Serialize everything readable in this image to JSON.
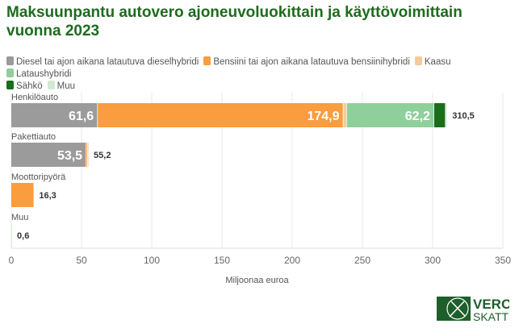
{
  "chart_data": {
    "type": "bar",
    "stacked": true,
    "orientation": "horizontal",
    "title": "Maksuunpantu autovero ajoneuvoluokittain ja käyttövoimittain vuonna 2023",
    "xlabel": "Miljoonaa euroa",
    "ylabel": "",
    "xlim": [
      0,
      350
    ],
    "xticks": [
      0,
      50,
      100,
      150,
      200,
      250,
      300,
      350
    ],
    "grid": true,
    "legend_placement": "top",
    "categories": [
      "Henkilöauto",
      "Pakettiauto",
      "Moottoripyörä",
      "Muu"
    ],
    "series": [
      {
        "name": "Diesel tai ajon aikana latautuva dieselhybridi",
        "color": "#9b9b9b",
        "values": [
          61.6,
          53.5,
          0,
          0
        ]
      },
      {
        "name": "Bensiini tai ajon aikana latautuva bensiinihybridi",
        "color": "#f99d3e",
        "values": [
          174.9,
          1.0,
          16.3,
          0
        ]
      },
      {
        "name": "Kaasu",
        "color": "#f5c99a",
        "values": [
          2.4,
          0.7,
          0,
          0
        ]
      },
      {
        "name": "Lataushybridi",
        "color": "#8fcf9c",
        "values": [
          62.2,
          0,
          0,
          0
        ]
      },
      {
        "name": "Sähkö",
        "color": "#1a6e1a",
        "values": [
          8.2,
          0,
          0,
          0
        ]
      },
      {
        "name": "Muu",
        "color": "#d3e8d3",
        "values": [
          1.2,
          0,
          0,
          0.6
        ]
      }
    ],
    "segment_labels": [
      [
        "61,6",
        "174,9",
        "",
        "62,2",
        "",
        ""
      ],
      [
        "53,5",
        "",
        "",
        "",
        "",
        ""
      ],
      [
        "",
        "",
        "",
        "",
        "",
        ""
      ],
      [
        "",
        "",
        "",
        "",
        "",
        ""
      ]
    ],
    "totals": [
      "310,5",
      "55,2",
      "16,3",
      "0,6"
    ]
  },
  "logo": {
    "line1": "VERO",
    "line2": "SKATT"
  }
}
